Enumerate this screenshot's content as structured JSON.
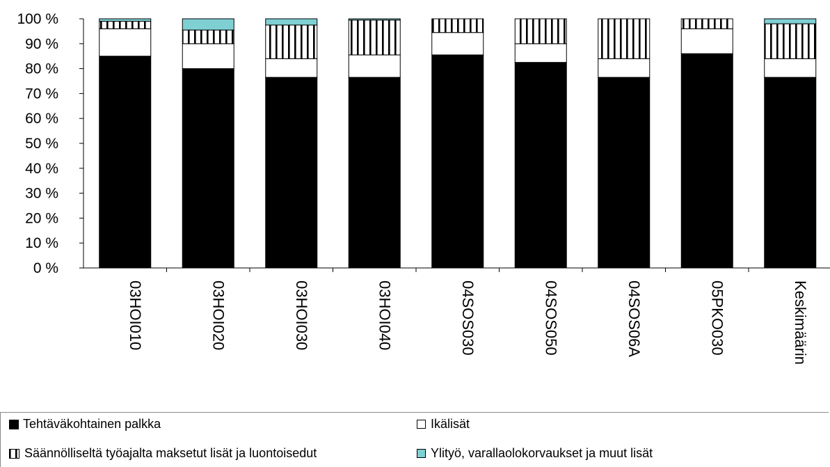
{
  "chart_data": {
    "type": "bar",
    "stacked": true,
    "categories": [
      "03HOI010",
      "03HOI020",
      "03HOI030",
      "03HOI040",
      "04SOS030",
      "04SOS050",
      "04SOS06A",
      "05PKO030",
      "Keskimäärin"
    ],
    "yticks": [
      "0 %",
      "10 %",
      "20 %",
      "30 %",
      "40 %",
      "50 %",
      "60 %",
      "70 %",
      "80 %",
      "90 %",
      "100 %"
    ],
    "ylim": [
      0,
      100
    ],
    "series": [
      {
        "name": "Tehtäväkohtainen palkka",
        "values": [
          85,
          80,
          76.5,
          76.5,
          85.5,
          82.5,
          76.5,
          86,
          76.5
        ],
        "fill": "#000000",
        "pattern": "solid"
      },
      {
        "name": "Ikälisät",
        "values": [
          11,
          10,
          7.5,
          9,
          9,
          7.5,
          7.5,
          10,
          7.5
        ],
        "fill": "#ffffff",
        "pattern": "solid"
      },
      {
        "name": "Säännölliseltä työajalta maksetut lisät ja luontoisedut",
        "values": [
          3,
          5.5,
          13.5,
          14,
          5.5,
          10,
          16,
          4,
          14
        ],
        "fill": "#ffffff",
        "pattern": "vertical-stripes"
      },
      {
        "name": "Ylityö, varallaolokorvaukset ja muut lisät",
        "values": [
          1,
          4.5,
          2.5,
          0.5,
          0,
          0,
          0,
          0,
          2
        ],
        "fill": "#7fd0d3",
        "pattern": "solid"
      }
    ],
    "legend_position": "bottom",
    "grid": false
  }
}
